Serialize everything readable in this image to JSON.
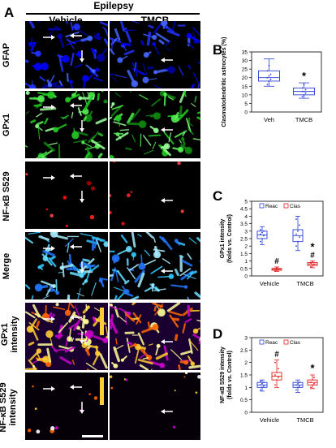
{
  "figure": {
    "panel_letters": [
      "A",
      "B",
      "C",
      "D"
    ],
    "header": "Epilepsy",
    "columns": [
      "Vehicle",
      "TMCB"
    ],
    "rows": [
      {
        "label": "GFAP",
        "color": "#2020ff"
      },
      {
        "label": "GPx1",
        "color": "#22cc22"
      },
      {
        "label": "NF-κB S529",
        "color": "#ff2020"
      },
      {
        "label": "Merge",
        "color": "#30b0ff"
      },
      {
        "label_lines": [
          "GPx1",
          "intensity"
        ],
        "color": "#ff9900"
      },
      {
        "label_lines": [
          "NF-κB S529",
          "intensity"
        ],
        "color": "#ff9900"
      }
    ]
  },
  "chart_data": [
    {
      "type": "box",
      "panel": "B",
      "categories": [
        "Veh",
        "TMCB"
      ],
      "ylabel": "Clasmatodendritic astrocytes (%)",
      "ylim": [
        0,
        35
      ],
      "yticks": [
        0,
        5,
        10,
        15,
        20,
        25,
        30,
        35
      ],
      "series": [
        {
          "color": "#2b3fd6",
          "boxes": [
            {
              "category": "Veh",
              "min": 15,
              "q1": 18,
              "median": 20,
              "q3": 24,
              "max": 31,
              "points": [
                16,
                18,
                19,
                20,
                21,
                22,
                24,
                27
              ]
            },
            {
              "category": "TMCB",
              "min": 8,
              "q1": 10,
              "median": 12,
              "q3": 14,
              "max": 17,
              "points": [
                9,
                10,
                11,
                12,
                12,
                13,
                14,
                16
              ]
            }
          ]
        }
      ],
      "annotations": [
        {
          "category": "TMCB",
          "text": "*"
        }
      ]
    },
    {
      "type": "box",
      "panel": "C",
      "categories": [
        "Vehicle",
        "TMCB"
      ],
      "ylabel_lines": [
        "GPx1 intensity",
        "(folds vs. Control)"
      ],
      "ylim": [
        0,
        5
      ],
      "yticks": [
        0,
        0.5,
        1,
        1.5,
        2,
        2.5,
        3,
        3.5,
        4,
        4.5,
        5
      ],
      "legend": [
        "Reac",
        "Clas"
      ],
      "series": [
        {
          "name": "Reac",
          "color": "#2b3fd6",
          "boxes": [
            {
              "category": "Vehicle",
              "min": 2.1,
              "q1": 2.5,
              "median": 2.75,
              "q3": 3.0,
              "max": 3.3,
              "points": [
                2.3,
                2.5,
                2.7,
                2.8,
                2.9,
                3.0,
                3.1
              ]
            },
            {
              "category": "TMCB",
              "min": 1.7,
              "q1": 2.3,
              "median": 2.7,
              "q3": 3.1,
              "max": 4.0,
              "points": [
                2.0,
                2.3,
                2.6,
                2.8,
                3.0,
                3.4,
                3.8
              ]
            }
          ]
        },
        {
          "name": "Clas",
          "color": "#e02020",
          "boxes": [
            {
              "category": "Vehicle",
              "min": 0.3,
              "q1": 0.38,
              "median": 0.45,
              "q3": 0.5,
              "max": 0.6,
              "points": [
                0.35,
                0.4,
                0.45,
                0.48,
                0.55
              ]
            },
            {
              "category": "TMCB",
              "min": 0.55,
              "q1": 0.7,
              "median": 0.8,
              "q3": 0.9,
              "max": 1.0,
              "points": [
                0.6,
                0.7,
                0.78,
                0.85,
                0.95
              ]
            }
          ]
        }
      ],
      "annotations": [
        {
          "category": "Vehicle",
          "series": "Clas",
          "text": "#"
        },
        {
          "category": "TMCB",
          "series": "Clas",
          "text": "#"
        },
        {
          "category": "TMCB",
          "series": "Clas",
          "text": "*"
        }
      ]
    },
    {
      "type": "box",
      "panel": "D",
      "categories": [
        "Vehicle",
        "TMCB"
      ],
      "ylabel_lines": [
        "NF-κB S529 intensity",
        "(folds vs. Control)"
      ],
      "ylim": [
        0,
        3
      ],
      "yticks": [
        0,
        0.5,
        1,
        1.5,
        2,
        2.5,
        3
      ],
      "legend": [
        "Reac",
        "Clas"
      ],
      "series": [
        {
          "name": "Reac",
          "color": "#2b3fd6",
          "boxes": [
            {
              "category": "Vehicle",
              "min": 0.85,
              "q1": 1.0,
              "median": 1.1,
              "q3": 1.2,
              "max": 1.3,
              "points": [
                0.9,
                1.0,
                1.05,
                1.1,
                1.15,
                1.2,
                1.25
              ]
            },
            {
              "category": "TMCB",
              "min": 0.8,
              "q1": 1.0,
              "median": 1.1,
              "q3": 1.2,
              "max": 1.3,
              "points": [
                0.9,
                1.0,
                1.05,
                1.1,
                1.15,
                1.2
              ]
            }
          ]
        },
        {
          "name": "Clas",
          "color": "#e02020",
          "boxes": [
            {
              "category": "Vehicle",
              "min": 1.0,
              "q1": 1.3,
              "median": 1.45,
              "q3": 1.6,
              "max": 2.1,
              "points": [
                1.1,
                1.3,
                1.4,
                1.5,
                1.6,
                1.75,
                2.0
              ]
            },
            {
              "category": "TMCB",
              "min": 0.95,
              "q1": 1.1,
              "median": 1.2,
              "q3": 1.3,
              "max": 1.5,
              "points": [
                1.0,
                1.1,
                1.15,
                1.2,
                1.3,
                1.4
              ]
            }
          ]
        }
      ],
      "annotations": [
        {
          "category": "Vehicle",
          "series": "Clas",
          "text": "#"
        },
        {
          "category": "TMCB",
          "series": "Clas",
          "text": "*"
        }
      ]
    }
  ]
}
